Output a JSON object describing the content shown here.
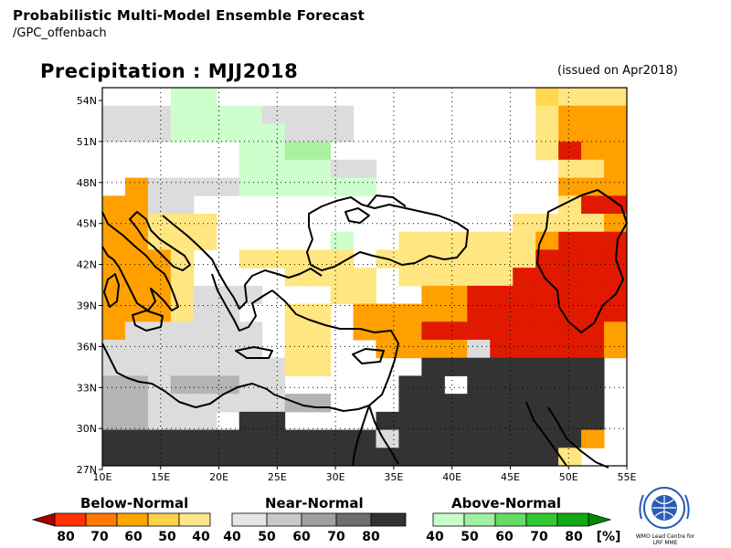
{
  "header": {
    "line1": "Probabilistic Multi-Model Ensemble Forecast",
    "line2": "/GPC_offenbach"
  },
  "map": {
    "title": "Precipitation : MJJ2018",
    "issued": "(issued on Apr2018)",
    "lon_ticks": [
      "10E",
      "15E",
      "20E",
      "25E",
      "30E",
      "35E",
      "40E",
      "45E",
      "50E",
      "55E"
    ],
    "lat_ticks": [
      "54N",
      "51N",
      "48N",
      "45N",
      "42N",
      "39N",
      "36N",
      "33N",
      "30N",
      "27N"
    ],
    "lon_range": [
      10,
      55
    ],
    "lat_range": [
      27,
      55.5
    ],
    "cell_size_deg": 2.5,
    "grid_rows_north_to_south": [
      "BBB77BBBBBBBBBBBBBBA3334",
      "NNN7777NNNNBBBBBBBB3222221",
      "NNN77777NNNBBBBBBBB3222221",
      "BBBBBB7788BBBBBBBBB31222111",
      "BBBBBB7777NNBBBBBBBB3322111",
      "B2NNNN777777BBBBBBBB2222111",
      "22NNBBBBBBBBBBBBBBBB311111",
      "22333BBBBBBBBBBBBB333321111",
      "22333BBBBB7BB3333332111111",
      "2223BB33333B3333333111111",
      "2223BBBB3333B33333111111",
      "2223NNNBBB33BB2211111111",
      "2223NNBB33B222221111111",
      "2NNNNNNB33B222111111112",
      "NNNNNNNB33BB2222N111112",
      "NNNNNNNN33BBBBKKKKKKKK",
      "MMNMMMNNBBBBBKKBKKKKKK",
      "MMNNNNNNMMBBBKKKKKKKKK",
      "MMNNNBKKBBBBKKKKKKKKKK",
      "KKKKKKKKKKKKNKKKKKKKK2",
      "KKKKKKKKKKKKKKKKKKKK3"
    ],
    "category_colors": {
      "B": "#ffffff",
      "N": "#dcdcdc",
      "M": "#b4b4b4",
      "G": "#7f7f7f",
      "K": "#333333",
      "7": "#ccffcc",
      "8": "#aaf0a0",
      "3": "#ffe680",
      "A": "#ffd750",
      "2": "#ffa000",
      "1": "#e11900",
      "0": "#ff5000"
    },
    "coastline_color": "#000000",
    "grid_color": "#000000"
  },
  "legend": {
    "below": {
      "title": "Below-Normal",
      "labels": [
        "80",
        "70",
        "60",
        "50",
        "40"
      ],
      "colors": [
        "#a50000",
        "#ff3200",
        "#ff7800",
        "#ffa500",
        "#ffd24b",
        "#ffe68c"
      ]
    },
    "near": {
      "title": "Near-Normal",
      "labels": [
        "40",
        "50",
        "60",
        "70",
        "80"
      ],
      "colors": [
        "#e6e6e6",
        "#c8c8c8",
        "#a0a0a0",
        "#6e6e6e",
        "#323232"
      ]
    },
    "above": {
      "title": "Above-Normal",
      "labels": [
        "40",
        "50",
        "60",
        "70",
        "80",
        "[%]"
      ],
      "colors": [
        "#c8ffc8",
        "#a0f0a0",
        "#64dc64",
        "#32c832",
        "#14aa14",
        "#008c00"
      ]
    }
  },
  "logo": {
    "text_line1": "WMO Lead Centre for",
    "text_line2": "LRF MME"
  }
}
